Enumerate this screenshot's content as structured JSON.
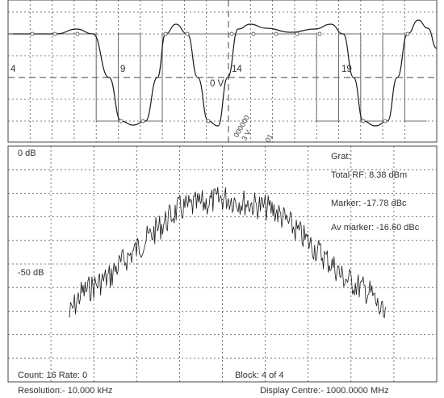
{
  "eye": {
    "tick_labels": [
      "4",
      "9",
      "14",
      "19"
    ],
    "center_label": "0 V",
    "marker_labels": [
      "000000",
      "3 V",
      "01"
    ]
  },
  "spectrum": {
    "top_db": "0 dB",
    "mid_db": "-50 dB",
    "grat": "Grat:",
    "total_rf": "Total RF:   8.38 dBm",
    "marker": "Marker: -17.78 dBc",
    "av_marker": "Av marker: -16.60 dBc",
    "count_rate": "Count: 16 Rate: 0",
    "block": "Block: 4 of 4"
  },
  "footer": {
    "resolution": "Resolution:- 10.000 kHz",
    "display_centre": "Display Centre:- 1000.0000 MHz"
  },
  "colors": {
    "trace": "#1a1a1a",
    "grid": "#555555",
    "frame": "#444444",
    "square": "#6b6b6b"
  }
}
